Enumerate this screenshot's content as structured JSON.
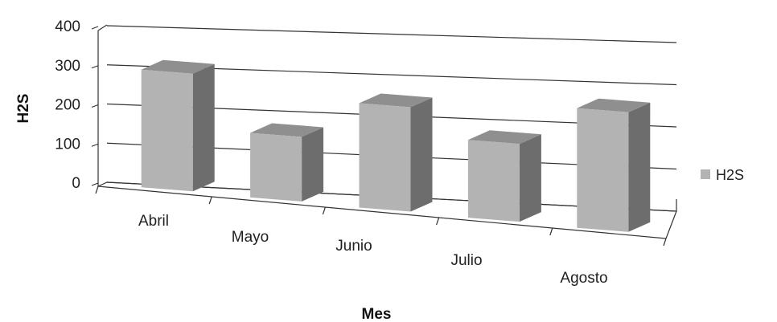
{
  "chart_data": {
    "type": "bar",
    "title": "",
    "xlabel": "Mes",
    "ylabel": "H2S",
    "ylim": [
      0,
      400
    ],
    "yticks": [
      0,
      100,
      200,
      300,
      400
    ],
    "grid": true,
    "legend_position": "right",
    "categories": [
      "Abril",
      "Mayo",
      "Junio",
      "Julio",
      "Agosto"
    ],
    "series": [
      {
        "name": "H2S",
        "values": [
          310,
          170,
          275,
          205,
          315
        ]
      }
    ],
    "colors": {
      "front": "#b3b3b3",
      "side": "#6d6d6d",
      "top": "#8f8f8f",
      "grid": "#333333"
    }
  }
}
